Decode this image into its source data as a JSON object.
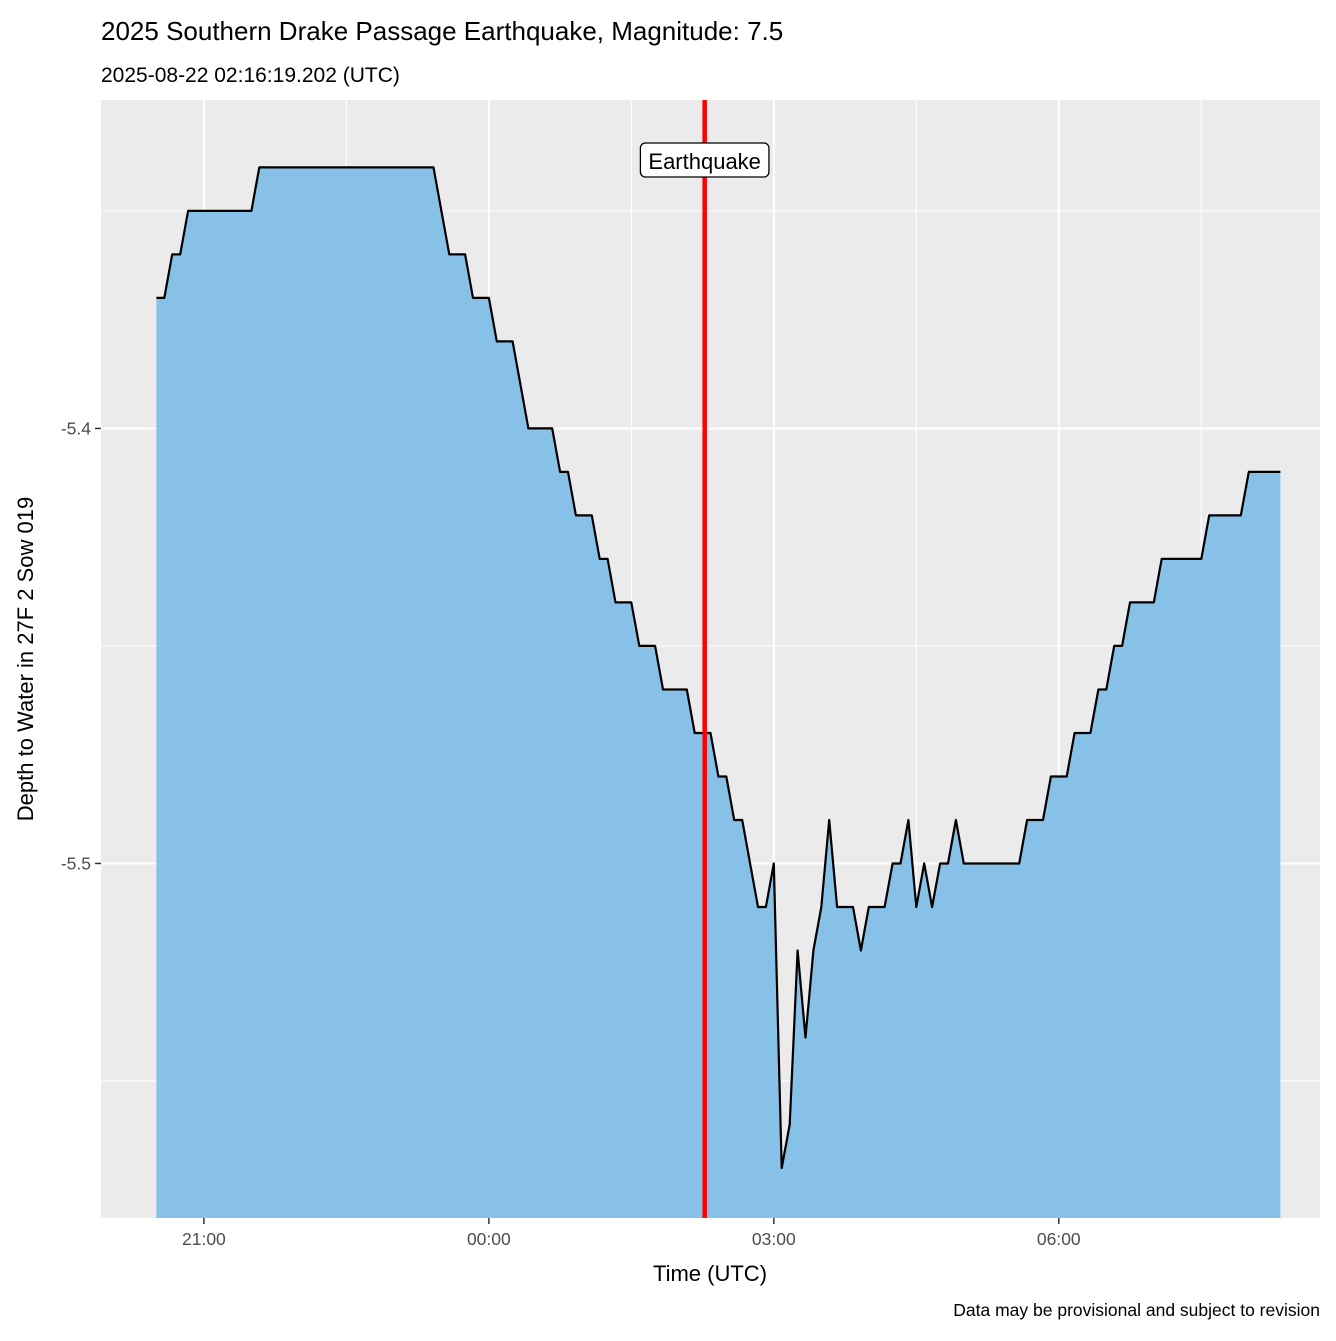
{
  "chart_data": {
    "type": "area",
    "title": "2025 Southern Drake Passage Earthquake, Magnitude: 7.5",
    "subtitle": "2025-08-22 02:16:19.202 (UTC)",
    "xlabel": "Time (UTC)",
    "ylabel": "Depth to Water in 27F 2 Sow 019",
    "caption": "Data may be provisional and subject to revision",
    "x_ticks": [
      "21:00",
      "00:00",
      "03:00",
      "06:00"
    ],
    "y_ticks": [
      "-5.4",
      "-5.5"
    ],
    "xlim": [
      "2025-08-21 19:55",
      "2025-08-22 08:45"
    ],
    "ylim": [
      -5.5815,
      -5.3245
    ],
    "grid": true,
    "fill_color": "#87C1E7",
    "line_color": "#000000",
    "event": {
      "label": "Earthquake",
      "time": "2025-08-22 02:16:19",
      "color": "#FF0000"
    },
    "points": [
      [
        "2025-08-21 20:30",
        -5.37
      ],
      [
        "2025-08-21 20:35",
        -5.37
      ],
      [
        "2025-08-21 20:40",
        -5.36
      ],
      [
        "2025-08-21 20:45",
        -5.36
      ],
      [
        "2025-08-21 20:50",
        -5.35
      ],
      [
        "2025-08-21 21:30",
        -5.35
      ],
      [
        "2025-08-21 21:35",
        -5.34
      ],
      [
        "2025-08-21 23:25",
        -5.34
      ],
      [
        "2025-08-21 23:35",
        -5.36
      ],
      [
        "2025-08-21 23:45",
        -5.36
      ],
      [
        "2025-08-21 23:50",
        -5.37
      ],
      [
        "2025-08-22 00:00",
        -5.37
      ],
      [
        "2025-08-22 00:05",
        -5.38
      ],
      [
        "2025-08-22 00:15",
        -5.38
      ],
      [
        "2025-08-22 00:25",
        -5.4
      ],
      [
        "2025-08-22 00:40",
        -5.4
      ],
      [
        "2025-08-22 00:45",
        -5.41
      ],
      [
        "2025-08-22 00:50",
        -5.41
      ],
      [
        "2025-08-22 00:55",
        -5.42
      ],
      [
        "2025-08-22 01:05",
        -5.42
      ],
      [
        "2025-08-22 01:10",
        -5.43
      ],
      [
        "2025-08-22 01:15",
        -5.43
      ],
      [
        "2025-08-22 01:20",
        -5.44
      ],
      [
        "2025-08-22 01:30",
        -5.44
      ],
      [
        "2025-08-22 01:35",
        -5.45
      ],
      [
        "2025-08-22 01:45",
        -5.45
      ],
      [
        "2025-08-22 01:50",
        -5.46
      ],
      [
        "2025-08-22 02:05",
        -5.46
      ],
      [
        "2025-08-22 02:10",
        -5.47
      ],
      [
        "2025-08-22 02:20",
        -5.47
      ],
      [
        "2025-08-22 02:25",
        -5.48
      ],
      [
        "2025-08-22 02:30",
        -5.48
      ],
      [
        "2025-08-22 02:35",
        -5.49
      ],
      [
        "2025-08-22 02:40",
        -5.49
      ],
      [
        "2025-08-22 02:50",
        -5.51
      ],
      [
        "2025-08-22 02:55",
        -5.51
      ],
      [
        "2025-08-22 03:00",
        -5.5
      ],
      [
        "2025-08-22 03:05",
        -5.57
      ],
      [
        "2025-08-22 03:10",
        -5.56
      ],
      [
        "2025-08-22 03:15",
        -5.52
      ],
      [
        "2025-08-22 03:20",
        -5.54
      ],
      [
        "2025-08-22 03:25",
        -5.52
      ],
      [
        "2025-08-22 03:30",
        -5.51
      ],
      [
        "2025-08-22 03:35",
        -5.49
      ],
      [
        "2025-08-22 03:40",
        -5.51
      ],
      [
        "2025-08-22 03:50",
        -5.51
      ],
      [
        "2025-08-22 03:55",
        -5.52
      ],
      [
        "2025-08-22 04:00",
        -5.51
      ],
      [
        "2025-08-22 04:10",
        -5.51
      ],
      [
        "2025-08-22 04:15",
        -5.5
      ],
      [
        "2025-08-22 04:20",
        -5.5
      ],
      [
        "2025-08-22 04:25",
        -5.49
      ],
      [
        "2025-08-22 04:30",
        -5.51
      ],
      [
        "2025-08-22 04:35",
        -5.5
      ],
      [
        "2025-08-22 04:40",
        -5.51
      ],
      [
        "2025-08-22 04:45",
        -5.5
      ],
      [
        "2025-08-22 04:50",
        -5.5
      ],
      [
        "2025-08-22 04:55",
        -5.49
      ],
      [
        "2025-08-22 05:00",
        -5.5
      ],
      [
        "2025-08-22 05:35",
        -5.5
      ],
      [
        "2025-08-22 05:40",
        -5.49
      ],
      [
        "2025-08-22 05:50",
        -5.49
      ],
      [
        "2025-08-22 05:55",
        -5.48
      ],
      [
        "2025-08-22 06:05",
        -5.48
      ],
      [
        "2025-08-22 06:10",
        -5.47
      ],
      [
        "2025-08-22 06:20",
        -5.47
      ],
      [
        "2025-08-22 06:25",
        -5.46
      ],
      [
        "2025-08-22 06:30",
        -5.46
      ],
      [
        "2025-08-22 06:35",
        -5.45
      ],
      [
        "2025-08-22 06:40",
        -5.45
      ],
      [
        "2025-08-22 06:45",
        -5.44
      ],
      [
        "2025-08-22 07:00",
        -5.44
      ],
      [
        "2025-08-22 07:05",
        -5.43
      ],
      [
        "2025-08-22 07:30",
        -5.43
      ],
      [
        "2025-08-22 07:35",
        -5.42
      ],
      [
        "2025-08-22 07:55",
        -5.42
      ],
      [
        "2025-08-22 08:00",
        -5.41
      ],
      [
        "2025-08-22 08:20",
        -5.41
      ]
    ]
  }
}
